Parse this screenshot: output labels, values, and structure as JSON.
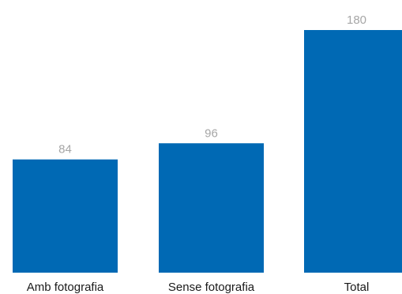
{
  "chart_data": {
    "type": "bar",
    "categories": [
      "Amb fotografia",
      "Sense fotografia",
      "Total"
    ],
    "values": [
      84,
      96,
      180
    ],
    "data_labels": [
      "84",
      "96",
      "180"
    ],
    "title": "",
    "xlabel": "",
    "ylabel": "",
    "ylim": [
      0,
      180
    ],
    "grid": false,
    "bar_color": "#0069b4",
    "value_label_color": "#a6a6a6",
    "category_label_color": "#1a1a1a"
  }
}
